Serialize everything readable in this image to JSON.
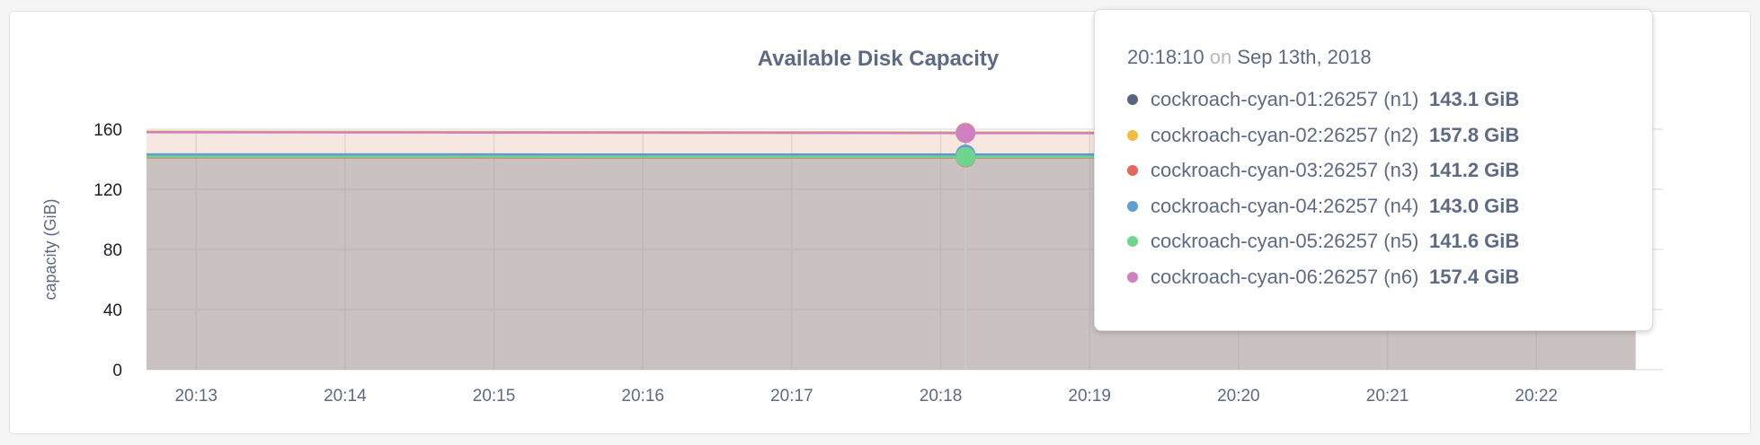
{
  "chart_data": {
    "type": "area",
    "title": "Available Disk Capacity",
    "xlabel": "",
    "ylabel": "capacity (GiB)",
    "ylim": [
      0,
      160
    ],
    "yticks": [
      "0",
      "40",
      "80",
      "120",
      "160"
    ],
    "xticks": [
      "20:13",
      "20:14",
      "20:15",
      "20:16",
      "20:17",
      "20:18",
      "20:19",
      "20:20",
      "20:21",
      "20:22"
    ],
    "x": [
      "20:12:40",
      "20:13:40",
      "20:14:40",
      "20:15:40",
      "20:16:40",
      "20:17:40",
      "20:18:10",
      "20:18:40",
      "20:19:40",
      "20:20:40",
      "20:21:40",
      "20:22:40"
    ],
    "grid": true,
    "series": [
      {
        "name": "cockroach-cyan-01:26257 (n1)",
        "color": "#5b6480",
        "values": [
          143.2,
          143.2,
          143.2,
          143.1,
          143.1,
          143.1,
          143.1,
          143.1,
          143.1,
          143.0,
          143.0,
          143.0
        ]
      },
      {
        "name": "cockroach-cyan-02:26257 (n2)",
        "color": "#f0bd3e",
        "values": [
          158.4,
          158.3,
          158.2,
          158.1,
          158.0,
          157.9,
          157.8,
          157.8,
          157.7,
          157.6,
          157.5,
          157.5
        ]
      },
      {
        "name": "cockroach-cyan-03:26257 (n3)",
        "color": "#e5685e",
        "values": [
          141.3,
          141.3,
          141.3,
          141.2,
          141.2,
          141.2,
          141.2,
          141.2,
          141.2,
          141.1,
          141.1,
          141.1
        ]
      },
      {
        "name": "cockroach-cyan-04:26257 (n4)",
        "color": "#5f9fd1",
        "values": [
          143.1,
          143.1,
          143.1,
          143.0,
          143.0,
          143.0,
          143.0,
          143.0,
          143.0,
          142.9,
          142.9,
          142.9
        ]
      },
      {
        "name": "cockroach-cyan-05:26257 (n5)",
        "color": "#6fd48d",
        "values": [
          141.7,
          141.7,
          141.7,
          141.6,
          141.6,
          141.6,
          141.6,
          141.6,
          141.6,
          141.5,
          141.5,
          141.5
        ]
      },
      {
        "name": "cockroach-cyan-06:26257 (n6)",
        "color": "#cf80c0",
        "values": [
          158.0,
          157.9,
          157.8,
          157.7,
          157.6,
          157.5,
          157.4,
          157.4,
          157.3,
          157.2,
          157.1,
          157.1
        ]
      }
    ]
  },
  "tooltip": {
    "time": "20:18:10",
    "on": "on",
    "date": "Sep 13th, 2018",
    "hover_x": "20:18:10",
    "rows": [
      {
        "name": "cockroach-cyan-01:26257 (n1)",
        "value": "143.1 GiB",
        "color": "#5b6480"
      },
      {
        "name": "cockroach-cyan-02:26257 (n2)",
        "value": "157.8 GiB",
        "color": "#f0bd3e"
      },
      {
        "name": "cockroach-cyan-03:26257 (n3)",
        "value": "141.2 GiB",
        "color": "#e5685e"
      },
      {
        "name": "cockroach-cyan-04:26257 (n4)",
        "value": "143.0 GiB",
        "color": "#5f9fd1"
      },
      {
        "name": "cockroach-cyan-05:26257 (n5)",
        "value": "141.6 GiB",
        "color": "#6fd48d"
      },
      {
        "name": "cockroach-cyan-06:26257 (n6)",
        "value": "157.4 GiB",
        "color": "#cf80c0"
      }
    ]
  }
}
